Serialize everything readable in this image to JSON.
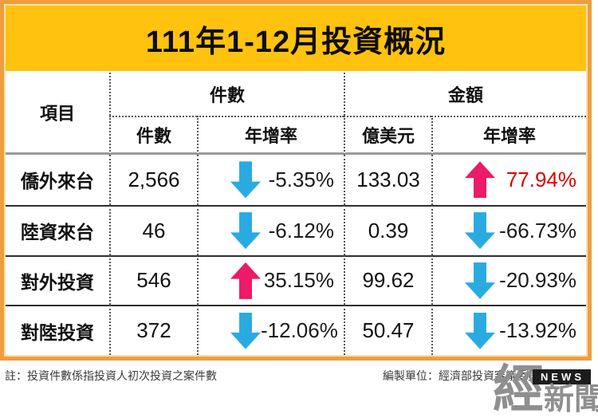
{
  "title": "111年1-12月投資概況",
  "table": {
    "header_item": "項目",
    "groups": [
      {
        "label": "件數"
      },
      {
        "label": "金額"
      }
    ],
    "sub_headers": [
      "件數",
      "年增率",
      "億美元",
      "年增率"
    ],
    "rows": [
      {
        "item": "僑外來台",
        "count": "2,566",
        "count_yoy": "-5.35%",
        "count_dir": "down",
        "count_yoy_color": "#1a1a1a",
        "amount": "133.03",
        "amount_yoy": "77.94%",
        "amount_dir": "up",
        "amount_yoy_color": "#DD0000"
      },
      {
        "item": "陸資來台",
        "count": "46",
        "count_yoy": "-6.12%",
        "count_dir": "down",
        "count_yoy_color": "#1a1a1a",
        "amount": "0.39",
        "amount_yoy": "-66.73%",
        "amount_dir": "down",
        "amount_yoy_color": "#1a1a1a"
      },
      {
        "item": "對外投資",
        "count": "546",
        "count_yoy": "35.15%",
        "count_dir": "up",
        "count_yoy_color": "#1a1a1a",
        "amount": "99.62",
        "amount_yoy": "-20.93%",
        "amount_dir": "down",
        "amount_yoy_color": "#1a1a1a"
      },
      {
        "item": "對陸投資",
        "count": "372",
        "count_yoy": "-12.06%",
        "count_dir": "down",
        "count_yoy_color": "#1a1a1a",
        "amount": "50.47",
        "amount_yoy": "-13.92%",
        "amount_dir": "down",
        "amount_yoy_color": "#1a1a1a"
      }
    ]
  },
  "footer": {
    "note": "註：投資件數係指投資人初次投資之案件數",
    "source": "編製單位：經濟部投資審議委員會"
  },
  "watermark": {
    "char": "經",
    "rest": "新聞",
    "badge": "NEWS"
  },
  "colors": {
    "title_background": "#FFC20E",
    "frame_border": "#EE9E3F",
    "up_arrow": "#EC1A67",
    "down_arrow": "#29ABE2",
    "highlight_red": "#DD0000"
  }
}
